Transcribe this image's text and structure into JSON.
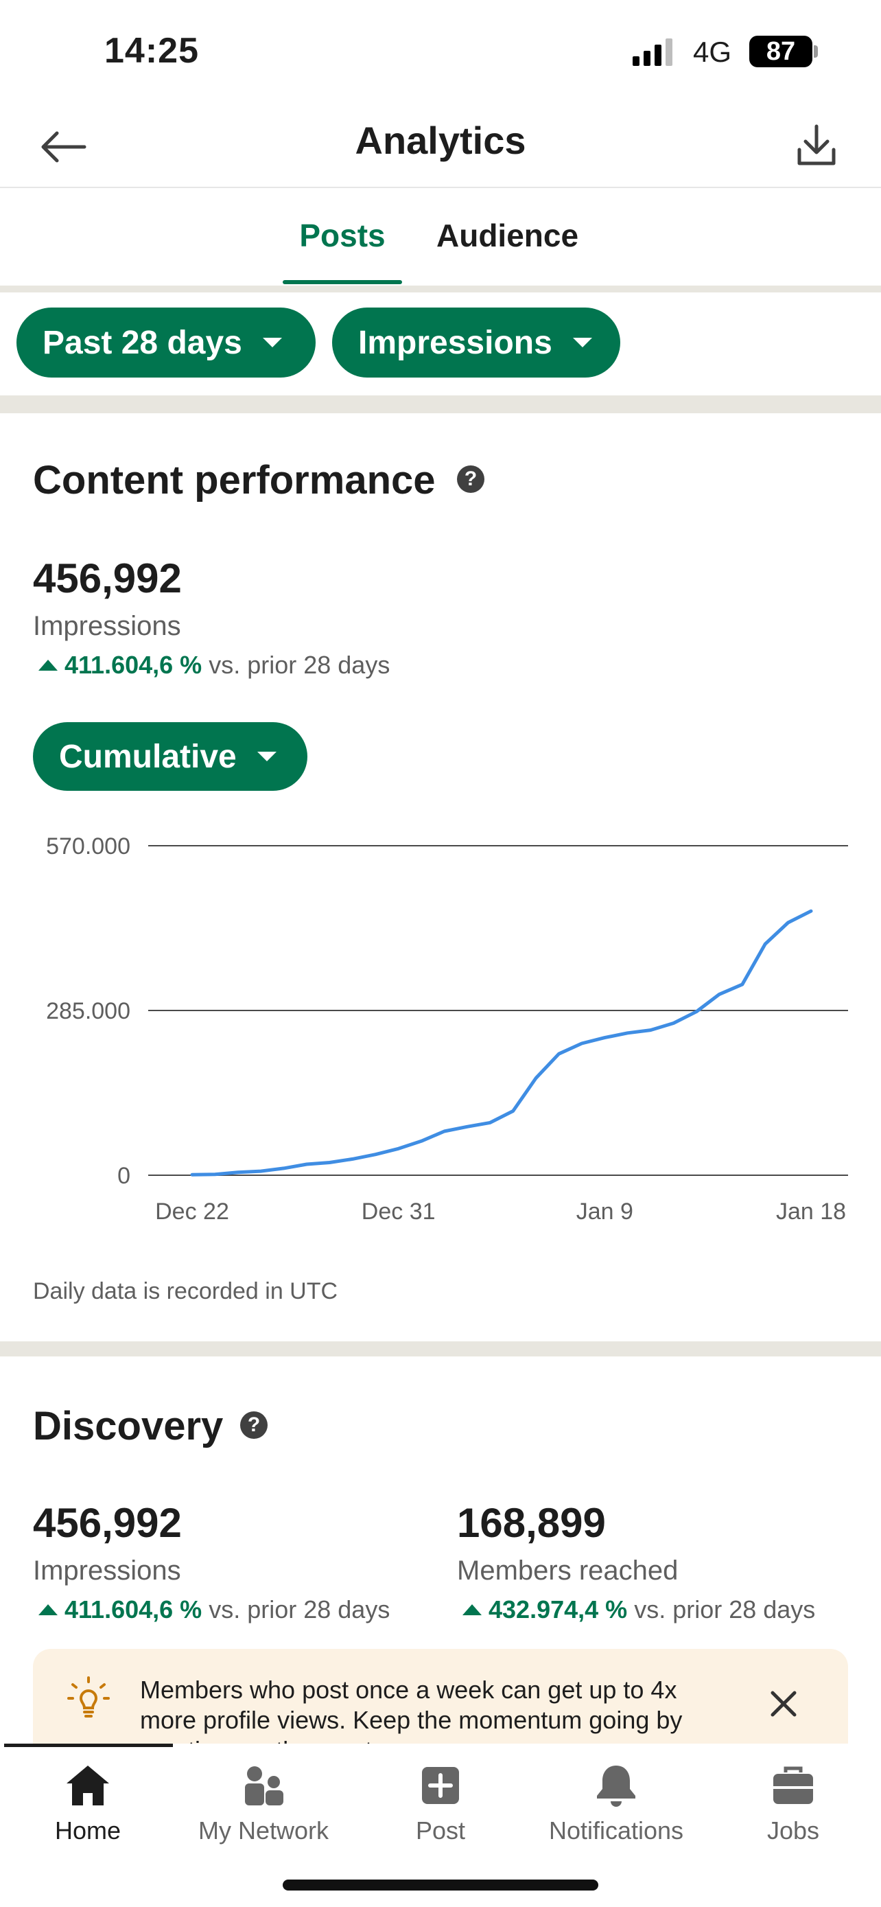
{
  "status_bar": {
    "time": "14:25",
    "network": "4G",
    "battery": "87"
  },
  "header": {
    "title": "Analytics",
    "back_icon": "arrow-left-icon",
    "download_icon": "download-icon"
  },
  "tabs": [
    {
      "label": "Posts",
      "active": true
    },
    {
      "label": "Audience",
      "active": false
    }
  ],
  "filters": {
    "period": "Past 28 days",
    "metric": "Impressions"
  },
  "content_performance": {
    "title": "Content performance",
    "value": "456,992",
    "label": "Impressions",
    "change": "411.604,6 %",
    "change_suffix": "vs. prior 28 days",
    "mode": "Cumulative",
    "footnote": "Daily data is recorded in UTC"
  },
  "chart_data": {
    "type": "line",
    "x_ticks": [
      "Dec 22",
      "Dec 31",
      "Jan 9",
      "Jan 18"
    ],
    "y_ticks": [
      "570.000",
      "285.000",
      "0"
    ],
    "ylim": [
      0,
      570000
    ],
    "series": [
      {
        "color": "#3f8de3",
        "x": [
          "Dec 22",
          "Dec 23",
          "Dec 24",
          "Dec 25",
          "Dec 26",
          "Dec 27",
          "Dec 28",
          "Dec 29",
          "Dec 30",
          "Dec 31",
          "Jan 1",
          "Jan 2",
          "Jan 3",
          "Jan 4",
          "Jan 5",
          "Jan 6",
          "Jan 7",
          "Jan 8",
          "Jan 9",
          "Jan 10",
          "Jan 11",
          "Jan 12",
          "Jan 13",
          "Jan 14",
          "Jan 15",
          "Jan 16",
          "Jan 17",
          "Jan 18"
        ],
        "values": [
          1000,
          1500,
          5000,
          7000,
          12000,
          19000,
          22000,
          28000,
          36000,
          46000,
          59000,
          76000,
          84000,
          91000,
          111000,
          168000,
          210000,
          228000,
          238000,
          246000,
          251000,
          263000,
          283000,
          313000,
          330000,
          400000,
          437000,
          457000
        ]
      }
    ],
    "grid": true
  },
  "discovery": {
    "title": "Discovery",
    "metrics": [
      {
        "value": "456,992",
        "label": "Impressions",
        "change": "411.604,6 %",
        "change_suffix": "vs. prior 28 days"
      },
      {
        "value": "168,899",
        "label": "Members reached",
        "change": "432.974,4 %",
        "change_suffix": "vs. prior 28 days"
      }
    ]
  },
  "banner": {
    "icon": "lightbulb-icon",
    "line1": "Members who post once a week can get up to 4x",
    "line2": "more profile views. Keep the momentum going by",
    "line3": "creating another post."
  },
  "bottom_nav": [
    {
      "label": "Home",
      "icon": "home-icon",
      "active": true
    },
    {
      "label": "My Network",
      "icon": "network-icon",
      "active": false
    },
    {
      "label": "Post",
      "icon": "post-icon",
      "active": false
    },
    {
      "label": "Notifications",
      "icon": "bell-icon",
      "active": false
    },
    {
      "label": "Jobs",
      "icon": "briefcase-icon",
      "active": false
    }
  ],
  "colors": {
    "accent": "#01754f",
    "line": "#3f8de3",
    "banner_bg": "#fcf2e3"
  }
}
